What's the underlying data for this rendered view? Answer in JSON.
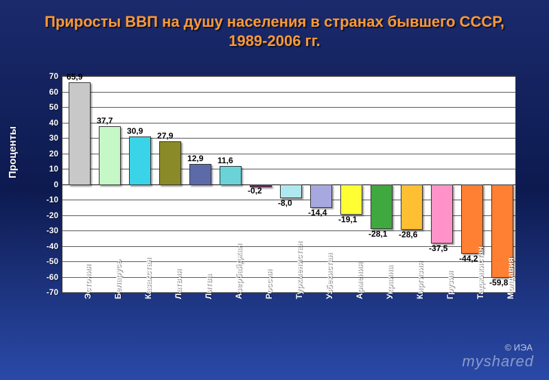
{
  "chart": {
    "type": "bar",
    "title": "Приросты ВВП на душу населения в странах бывшего СССР, 1989-2006 гг.",
    "title_color": "#ff9933",
    "title_fontsize": 22,
    "ylabel": "Проценты",
    "ylabel_fontsize": 15,
    "background_gradient": [
      "#1a2a6c",
      "#0d1a50",
      "#2a4aa8"
    ],
    "plot_background": "#ffffff",
    "grid_color": "#555555",
    "text_color_axis": "#ffffff",
    "ylim": [
      -70,
      70
    ],
    "ytick_step": 10,
    "yticks": [
      70,
      60,
      50,
      40,
      30,
      20,
      10,
      0,
      -10,
      -20,
      -30,
      -40,
      -50,
      -60,
      -70
    ],
    "bar_width": 0.68,
    "categories": [
      "Эстония",
      "Беларусь",
      "Казахстан",
      "Латвия",
      "Литва",
      "Азербайджан",
      "Россия",
      "Туркменистан",
      "Узбекистан",
      "Армения",
      "Украина",
      "Киргизия",
      "Грузия",
      "Таджикистан",
      "Молдавия"
    ],
    "values": [
      65.9,
      37.7,
      30.9,
      27.9,
      12.9,
      11.6,
      -0.2,
      -8.0,
      -14.4,
      -19.1,
      -28.1,
      -28.6,
      -37.5,
      -44.2,
      -59.8
    ],
    "value_labels": [
      "65,9",
      "37,7",
      "30,9",
      "27,9",
      "12,9",
      "11,6",
      "-0,2",
      "-8,0",
      "-14,4",
      "-19,1",
      "-28,1",
      "-28,6",
      "-37,5",
      "-44,2",
      "-59,8"
    ],
    "bar_colors": [
      "#c8c8c8",
      "#c6f7c6",
      "#3ad4e8",
      "#8a8a28",
      "#5c6ba8",
      "#6bd3d8",
      "#7a286b",
      "#b0e8ef",
      "#a8a8e0",
      "#ffff33",
      "#3fa83f",
      "#ffbf33",
      "#ff93c9",
      "#ff7f33",
      "#ff7f33"
    ],
    "credit": "© ИЭА",
    "watermark": "myshared"
  }
}
